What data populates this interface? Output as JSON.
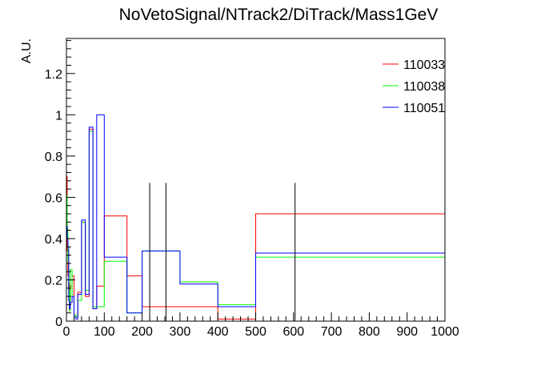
{
  "chart_data": {
    "type": "line",
    "title": "NoVetoSignal/NTrack2/DiTrack/Mass1GeV",
    "xlabel": "",
    "ylabel": "A.U.",
    "xlim": [
      0,
      1000
    ],
    "ylim": [
      0,
      1.37
    ],
    "x_ticks": [
      0,
      100,
      200,
      300,
      400,
      500,
      600,
      700,
      800,
      900,
      1000
    ],
    "y_ticks": [
      0,
      0.2,
      0.4,
      0.6,
      0.8,
      1,
      1.2
    ],
    "grid": false,
    "legend_position": "top-right",
    "series": [
      {
        "name": "110033",
        "color": "#ff0000",
        "edges": [
          0,
          2,
          4,
          6,
          8,
          10,
          15,
          20,
          25,
          30,
          40,
          50,
          60,
          70,
          80,
          100,
          160,
          200,
          300,
          400,
          500,
          1000
        ],
        "values": [
          0.7,
          0.34,
          0.22,
          0.18,
          0.05,
          0.17,
          0.22,
          0.03,
          0.02,
          0.14,
          0.48,
          0.12,
          0.93,
          0.06,
          0.17,
          0.51,
          0.22,
          0.07,
          0.07,
          0.01,
          0.52
        ]
      },
      {
        "name": "110038",
        "color": "#00ff00",
        "edges": [
          0,
          2,
          4,
          6,
          8,
          10,
          15,
          20,
          25,
          30,
          40,
          50,
          60,
          70,
          80,
          100,
          160,
          200,
          300,
          400,
          500,
          1000
        ],
        "values": [
          0.61,
          0.45,
          0.29,
          0.15,
          0.05,
          0.25,
          0.12,
          0.03,
          0.02,
          0.1,
          0.48,
          0.15,
          0.92,
          0.07,
          0.07,
          0.29,
          0.04,
          0.34,
          0.19,
          0.08,
          0.31
        ]
      },
      {
        "name": "110051",
        "color": "#0000ff",
        "edges": [
          0,
          2,
          4,
          6,
          8,
          10,
          15,
          20,
          25,
          30,
          40,
          50,
          60,
          70,
          80,
          100,
          160,
          200,
          300,
          400,
          500,
          1000
        ],
        "values": [
          0.46,
          0.4,
          0.36,
          0.1,
          0.06,
          0.09,
          0.12,
          0.02,
          0.01,
          0.13,
          0.49,
          0.13,
          0.94,
          0.06,
          1.0,
          0.31,
          0.04,
          0.34,
          0.18,
          0.07,
          0.33
        ]
      }
    ],
    "vertical_lines": {
      "color": "#000000",
      "x": [
        220,
        263,
        604
      ],
      "y_top": 0.67
    }
  }
}
